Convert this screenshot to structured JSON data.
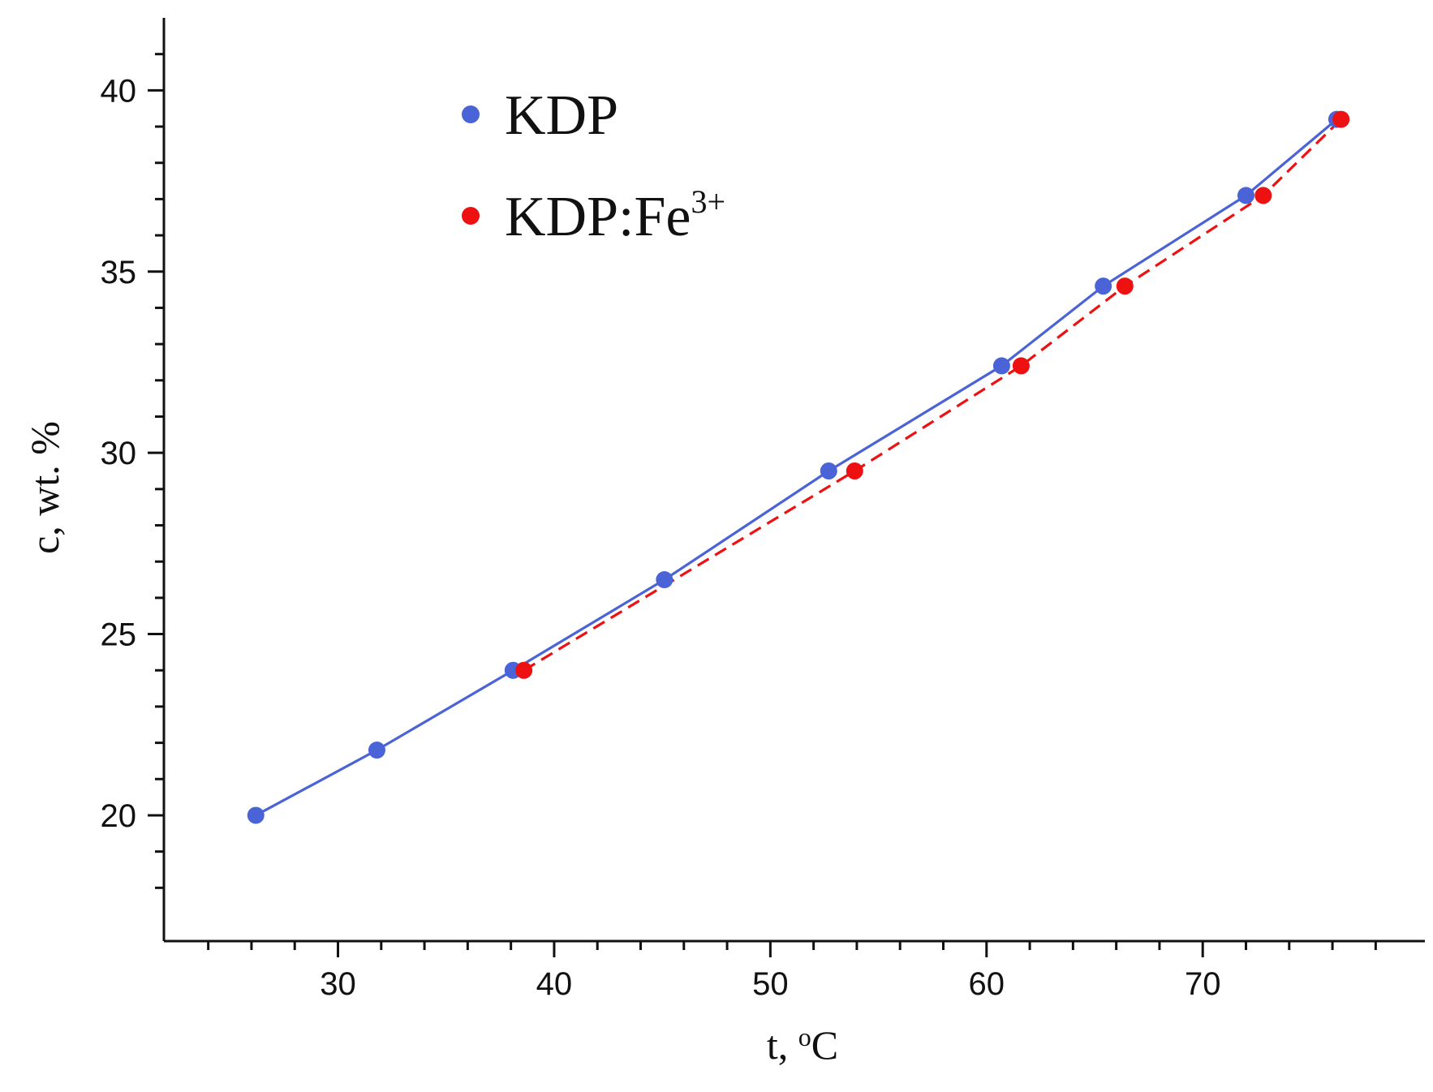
{
  "chart_data": {
    "type": "scatter",
    "title": "",
    "xlabel": "t, ",
    "xlabel_sup": "o",
    "xlabel_unit": "C",
    "ylabel": "c, wt. %",
    "xlim": [
      23,
      79
    ],
    "ylim": [
      17,
      42
    ],
    "x_ticks": [
      30,
      40,
      50,
      60,
      70
    ],
    "y_ticks": [
      20,
      25,
      30,
      35,
      40
    ],
    "grid": false,
    "legend_position": "top-left",
    "series": [
      {
        "name": "KDP",
        "label_sup": "",
        "color": "#4a63d6",
        "line_style": "solid",
        "x": [
          26.2,
          31.8,
          38.1,
          45.1,
          52.7,
          60.7,
          65.4,
          72.0,
          76.2
        ],
        "y": [
          20.0,
          21.8,
          24.0,
          26.5,
          29.5,
          32.4,
          34.6,
          37.1,
          39.2
        ]
      },
      {
        "name": "KDP:Fe",
        "label_sup": "3+",
        "color": "#ee1111",
        "line_style": "dashed",
        "x": [
          38.6,
          53.9,
          61.6,
          66.4,
          72.8,
          76.4
        ],
        "y": [
          24.0,
          29.5,
          32.4,
          34.6,
          37.1,
          39.2
        ]
      }
    ]
  }
}
